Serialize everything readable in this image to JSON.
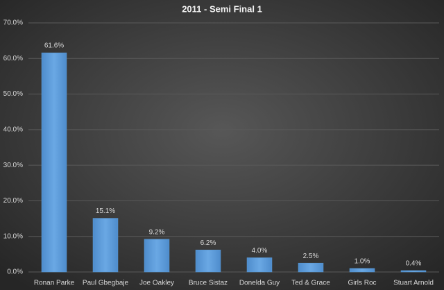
{
  "chart_data": {
    "type": "bar",
    "title": "2011 - Semi Final 1",
    "categories": [
      "Ronan Parke",
      "Paul Gbegbaje",
      "Joe Oakley",
      "Bruce Sistaz",
      "Donelda Guy",
      "Ted & Grace",
      "Girls Roc",
      "Stuart Arnold"
    ],
    "values": [
      61.6,
      15.1,
      9.2,
      6.2,
      4.0,
      2.5,
      1.0,
      0.4
    ],
    "value_labels": [
      "61.6%",
      "15.1%",
      "9.2%",
      "6.2%",
      "4.0%",
      "2.5%",
      "1.0%",
      "0.4%"
    ],
    "color": "#5b9bd5",
    "ylim": [
      0,
      70
    ],
    "yticks": [
      {
        "value": 0,
        "label": "0.0%"
      },
      {
        "value": 10,
        "label": "10.0%"
      },
      {
        "value": 20,
        "label": "20.0%"
      },
      {
        "value": 30,
        "label": "30.0%"
      },
      {
        "value": 40,
        "label": "40.0%"
      },
      {
        "value": 50,
        "label": "50.0%"
      },
      {
        "value": 60,
        "label": "60.0%"
      },
      {
        "value": 70,
        "label": "70.0%"
      }
    ],
    "grid": true
  }
}
